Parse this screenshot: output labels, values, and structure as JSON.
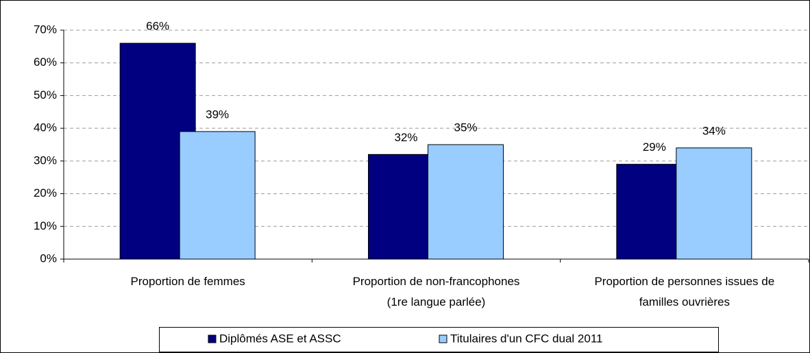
{
  "chart_data": {
    "type": "bar",
    "categories": [
      "Proportion de femmes",
      "Proportion de non-francophones\n(1re langue parlée)",
      "Proportion de personnes issues de\nfamilles ouvrières"
    ],
    "series": [
      {
        "name": "Diplômés ASE et ASSC",
        "color": "#000080",
        "values": [
          66,
          32,
          29
        ],
        "value_labels": [
          "66%",
          "32%",
          "29%"
        ]
      },
      {
        "name": "Titulaires d'un CFC dual 2011",
        "color": "#99ccff",
        "values": [
          39,
          35,
          34
        ],
        "value_labels": [
          "39%",
          "35%",
          "34%"
        ]
      }
    ],
    "ylim": [
      0,
      70
    ],
    "yticks": [
      {
        "value": 0,
        "label": "0%"
      },
      {
        "value": 10,
        "label": "10%"
      },
      {
        "value": 20,
        "label": "20%"
      },
      {
        "value": 30,
        "label": "30%"
      },
      {
        "value": 40,
        "label": "40%"
      },
      {
        "value": 50,
        "label": "50%"
      },
      {
        "value": 60,
        "label": "60%"
      },
      {
        "value": 70,
        "label": "70%"
      }
    ],
    "grid": true,
    "legend": "bottom"
  }
}
